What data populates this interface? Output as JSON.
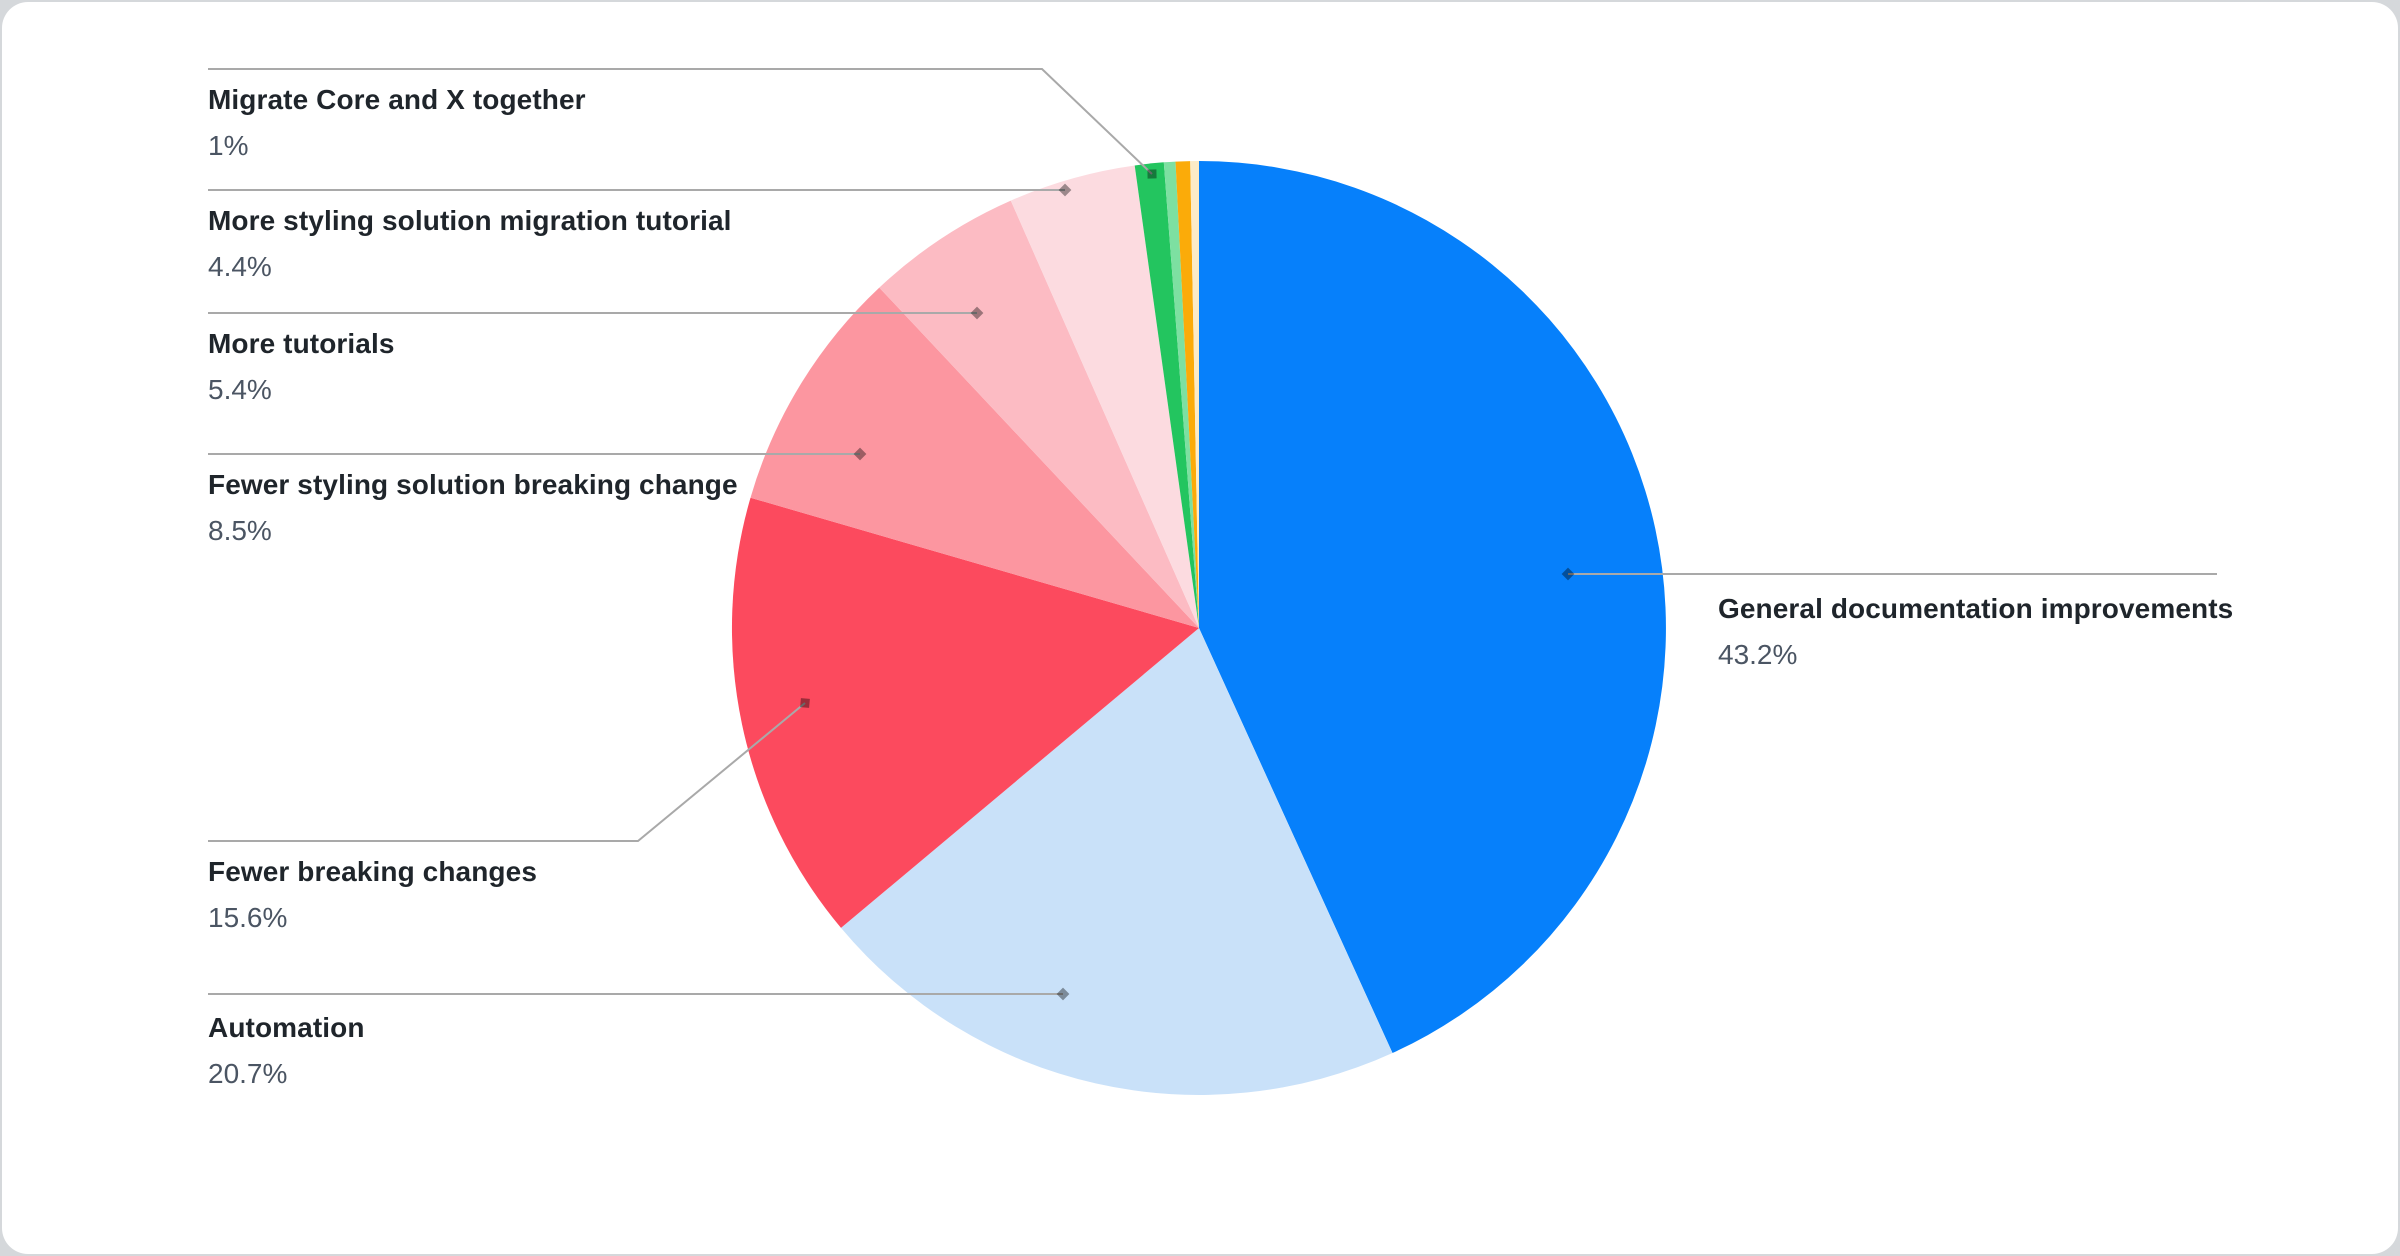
{
  "chart_data": {
    "type": "pie",
    "title": "",
    "legend_position": "callout-labels",
    "total": 100,
    "slices": [
      {
        "label": "General documentation improvements",
        "pct_label": "43.2%",
        "value": 43.2,
        "color": "#0680fb"
      },
      {
        "label": "Automation",
        "pct_label": "20.7%",
        "value": 20.7,
        "color": "#c9e1f9"
      },
      {
        "label": "Fewer breaking changes",
        "pct_label": "15.6%",
        "value": 15.6,
        "color": "#fc4a5e"
      },
      {
        "label": "Fewer styling solution breaking change",
        "pct_label": "8.5%",
        "value": 8.5,
        "color": "#fc96a0"
      },
      {
        "label": "More tutorials",
        "pct_label": "5.4%",
        "value": 5.4,
        "color": "#fcbbc3"
      },
      {
        "label": "More styling solution migration tutorial",
        "pct_label": "4.4%",
        "value": 4.4,
        "color": "#fcdbe0"
      },
      {
        "label": "Migrate Core and X together",
        "pct_label": "1%",
        "value": 1.0,
        "color": "#23c55f"
      },
      {
        "label": "",
        "pct_label": "",
        "value": 0.4,
        "color": "#7de0a1"
      },
      {
        "label": "",
        "pct_label": "",
        "value": 0.5,
        "color": "#fbab09"
      },
      {
        "label": "",
        "pct_label": "",
        "value": 0.3,
        "color": "#fcebc7"
      }
    ]
  },
  "styles": {
    "leader_line_color": "#a9a9a9",
    "marker_color": "rgba(0,0,0,0.38)",
    "label_title_color": "#1f252b",
    "label_value_color": "#4b5563",
    "card_background": "#ffffff",
    "page_background": "#d5d8db"
  }
}
